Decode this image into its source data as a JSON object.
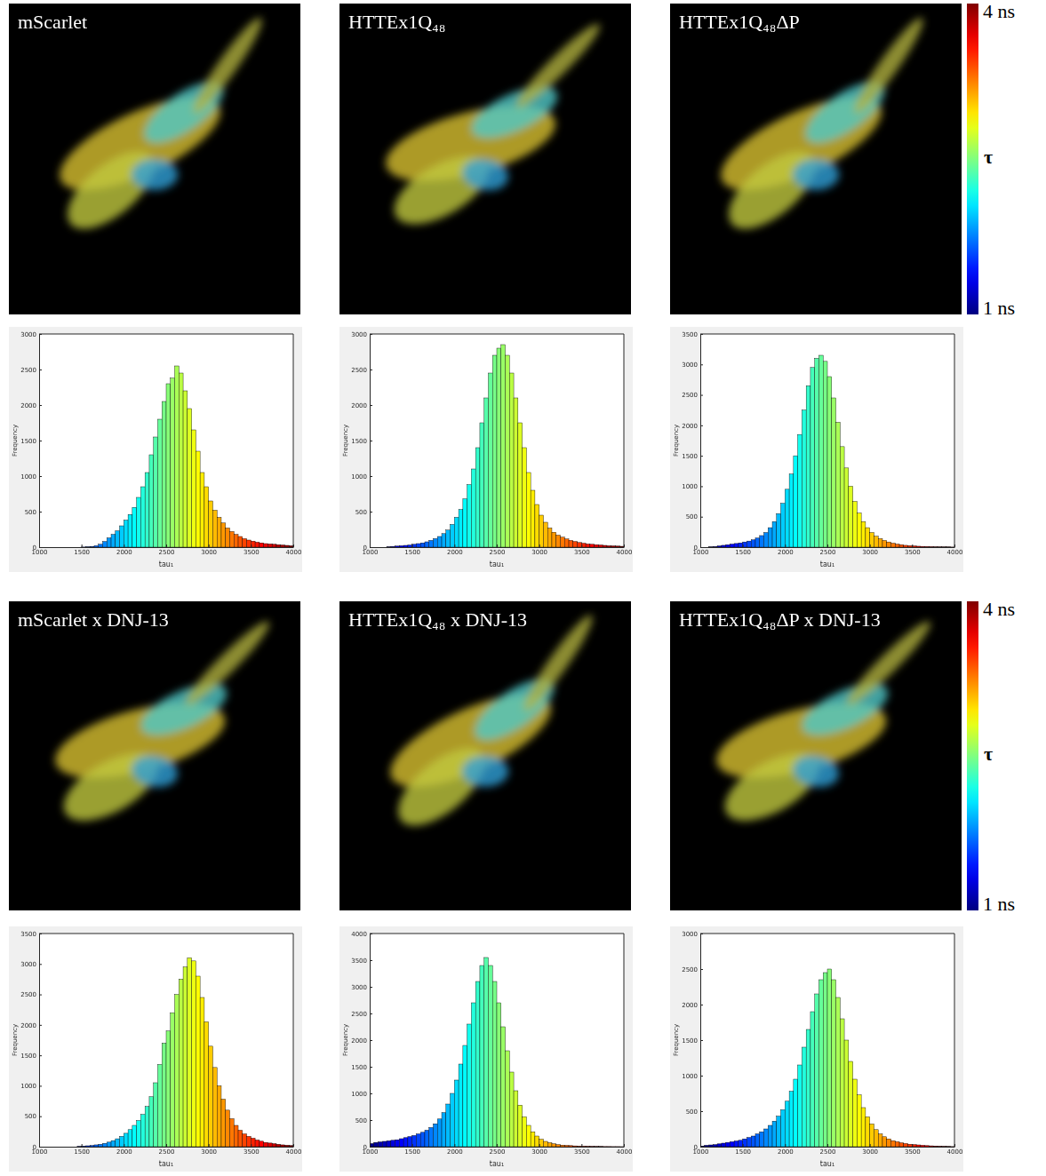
{
  "chart_data": [
    {
      "type": "histogram",
      "title": "mScarlet",
      "xlabel": "tau₁",
      "ylabel": "Frequency",
      "bins": [
        1000,
        1050,
        1100,
        1150,
        1200,
        1250,
        1300,
        1350,
        1400,
        1450,
        1500,
        1550,
        1600,
        1650,
        1700,
        1750,
        1800,
        1850,
        1900,
        1950,
        2000,
        2050,
        2100,
        2150,
        2200,
        2250,
        2300,
        2350,
        2400,
        2450,
        2500,
        2550,
        2600,
        2650,
        2700,
        2750,
        2800,
        2850,
        2900,
        2950,
        3000,
        3050,
        3100,
        3150,
        3200,
        3250,
        3300,
        3350,
        3400,
        3450,
        3500,
        3550,
        3600,
        3650,
        3700,
        3750,
        3800,
        3850,
        3900,
        3950,
        4000
      ],
      "counts": [
        0,
        0,
        0,
        0,
        0,
        0,
        0,
        0,
        0,
        0,
        2,
        5,
        10,
        20,
        40,
        80,
        130,
        180,
        230,
        300,
        380,
        460,
        560,
        700,
        850,
        1050,
        1300,
        1550,
        1800,
        2050,
        2300,
        2380,
        2550,
        2450,
        2200,
        1950,
        1650,
        1350,
        1050,
        850,
        650,
        520,
        420,
        340,
        270,
        220,
        180,
        150,
        120,
        100,
        85,
        70,
        60,
        50,
        45,
        40,
        35,
        30,
        25,
        20
      ],
      "xlim": [
        1000,
        4000
      ],
      "xticks": [
        1000,
        1500,
        2000,
        2500,
        3000,
        3500,
        4000
      ],
      "ylim": [
        0,
        3000
      ],
      "yticks": [
        0,
        500,
        1000,
        1500,
        2000,
        2500,
        3000
      ]
    },
    {
      "type": "histogram",
      "title": "HTTEx1Q₄₈",
      "xlabel": "tau₁",
      "ylabel": "Frequency",
      "bins": [
        1000,
        1050,
        1100,
        1150,
        1200,
        1250,
        1300,
        1350,
        1400,
        1450,
        1500,
        1550,
        1600,
        1650,
        1700,
        1750,
        1800,
        1850,
        1900,
        1950,
        2000,
        2050,
        2100,
        2150,
        2200,
        2250,
        2300,
        2350,
        2400,
        2450,
        2500,
        2550,
        2600,
        2650,
        2700,
        2750,
        2800,
        2850,
        2900,
        2950,
        3000,
        3050,
        3100,
        3150,
        3200,
        3250,
        3300,
        3350,
        3400,
        3450,
        3500,
        3550,
        3600,
        3650,
        3700,
        3750,
        3800,
        3850,
        3900,
        3950,
        4000
      ],
      "counts": [
        0,
        0,
        0,
        0,
        5,
        10,
        15,
        20,
        25,
        30,
        40,
        50,
        60,
        75,
        95,
        120,
        150,
        190,
        240,
        320,
        420,
        530,
        680,
        880,
        1100,
        1400,
        1750,
        2100,
        2450,
        2700,
        2800,
        2850,
        2700,
        2450,
        2100,
        1750,
        1400,
        1050,
        800,
        600,
        450,
        350,
        270,
        210,
        170,
        140,
        115,
        95,
        80,
        65,
        55,
        45,
        40,
        35,
        30,
        25,
        20,
        18,
        15,
        12
      ],
      "xlim": [
        1000,
        4000
      ],
      "xticks": [
        1000,
        1500,
        2000,
        2500,
        3000,
        3500,
        4000
      ],
      "ylim": [
        0,
        3000
      ],
      "yticks": [
        0,
        500,
        1000,
        1500,
        2000,
        2500,
        3000
      ]
    },
    {
      "type": "histogram",
      "title": "HTTEx1Q₄₈ΔP",
      "xlabel": "tau₁",
      "ylabel": "Frequency",
      "bins": [
        1000,
        1050,
        1100,
        1150,
        1200,
        1250,
        1300,
        1350,
        1400,
        1450,
        1500,
        1550,
        1600,
        1650,
        1700,
        1750,
        1800,
        1850,
        1900,
        1950,
        2000,
        2050,
        2100,
        2150,
        2200,
        2250,
        2300,
        2350,
        2400,
        2450,
        2500,
        2550,
        2600,
        2650,
        2700,
        2750,
        2800,
        2850,
        2900,
        2950,
        3000,
        3050,
        3100,
        3150,
        3200,
        3250,
        3300,
        3350,
        3400,
        3450,
        3500,
        3550,
        3600,
        3650,
        3700,
        3750,
        3800,
        3850,
        3900,
        3950,
        4000
      ],
      "counts": [
        0,
        0,
        5,
        10,
        20,
        30,
        40,
        50,
        60,
        70,
        85,
        100,
        120,
        150,
        190,
        240,
        320,
        420,
        550,
        720,
        950,
        1200,
        1500,
        1850,
        2250,
        2650,
        2950,
        3100,
        3150,
        3050,
        2800,
        2450,
        2050,
        1650,
        1300,
        1000,
        750,
        560,
        420,
        320,
        240,
        180,
        140,
        110,
        85,
        65,
        50,
        40,
        30,
        25,
        20,
        15,
        12,
        10,
        8,
        6,
        5,
        4,
        3,
        2
      ],
      "xlim": [
        1000,
        4000
      ],
      "xticks": [
        1000,
        1500,
        2000,
        2500,
        3000,
        3500,
        4000
      ],
      "ylim": [
        0,
        3500
      ],
      "yticks": [
        0,
        500,
        1000,
        1500,
        2000,
        2500,
        3000,
        3500
      ]
    },
    {
      "type": "histogram",
      "title": "mScarlet x DNJ-13",
      "xlabel": "tau₁",
      "ylabel": "Frequency",
      "bins": [
        1000,
        1050,
        1100,
        1150,
        1200,
        1250,
        1300,
        1350,
        1400,
        1450,
        1500,
        1550,
        1600,
        1650,
        1700,
        1750,
        1800,
        1850,
        1900,
        1950,
        2000,
        2050,
        2100,
        2150,
        2200,
        2250,
        2300,
        2350,
        2400,
        2450,
        2500,
        2550,
        2600,
        2650,
        2700,
        2750,
        2800,
        2850,
        2900,
        2950,
        3000,
        3050,
        3100,
        3150,
        3200,
        3250,
        3300,
        3350,
        3400,
        3450,
        3500,
        3550,
        3600,
        3650,
        3700,
        3750,
        3800,
        3850,
        3900,
        3950,
        4000
      ],
      "counts": [
        0,
        0,
        0,
        0,
        0,
        0,
        0,
        0,
        0,
        5,
        10,
        15,
        20,
        30,
        40,
        55,
        75,
        100,
        130,
        170,
        220,
        280,
        350,
        430,
        530,
        660,
        820,
        1050,
        1350,
        1700,
        1900,
        2200,
        2500,
        2750,
        2950,
        3100,
        3050,
        2800,
        2450,
        2050,
        1650,
        1300,
        1000,
        780,
        600,
        460,
        350,
        270,
        210,
        170,
        140,
        110,
        90,
        70,
        60,
        50,
        40,
        30,
        25,
        20
      ],
      "xlim": [
        1000,
        4000
      ],
      "xticks": [
        1000,
        1500,
        2000,
        2500,
        3000,
        3500,
        4000
      ],
      "ylim": [
        0,
        3500
      ],
      "yticks": [
        0,
        500,
        1000,
        1500,
        2000,
        2500,
        3000,
        3500
      ]
    },
    {
      "type": "histogram",
      "title": "HTTEx1Q₄₈ x DNJ-13",
      "xlabel": "tau₁",
      "ylabel": "Frequency",
      "bins": [
        1000,
        1050,
        1100,
        1150,
        1200,
        1250,
        1300,
        1350,
        1400,
        1450,
        1500,
        1550,
        1600,
        1650,
        1700,
        1750,
        1800,
        1850,
        1900,
        1950,
        2000,
        2050,
        2100,
        2150,
        2200,
        2250,
        2300,
        2350,
        2400,
        2450,
        2500,
        2550,
        2600,
        2650,
        2700,
        2750,
        2800,
        2850,
        2900,
        2950,
        3000,
        3050,
        3100,
        3150,
        3200,
        3250,
        3300,
        3350,
        3400,
        3450,
        3500,
        3550,
        3600,
        3650,
        3700,
        3750,
        3800,
        3850,
        3900,
        3950,
        4000
      ],
      "counts": [
        60,
        80,
        90,
        100,
        110,
        120,
        130,
        150,
        170,
        190,
        210,
        240,
        270,
        310,
        360,
        430,
        520,
        640,
        800,
        1000,
        1250,
        1550,
        1900,
        2300,
        2700,
        3100,
        3400,
        3550,
        3400,
        3100,
        2700,
        2250,
        1800,
        1400,
        1050,
        780,
        560,
        400,
        280,
        200,
        140,
        100,
        75,
        55,
        40,
        30,
        25,
        20,
        15,
        12,
        10,
        8,
        6,
        5,
        4,
        3,
        3,
        2,
        2,
        1
      ],
      "xlim": [
        1000,
        4000
      ],
      "xticks": [
        1000,
        1500,
        2000,
        2500,
        3000,
        3500,
        4000
      ],
      "ylim": [
        0,
        4000
      ],
      "yticks": [
        0,
        500,
        1000,
        1500,
        2000,
        2500,
        3000,
        3500,
        4000
      ]
    },
    {
      "type": "histogram",
      "title": "HTTEx1Q₄₈ΔP x DNJ-13",
      "xlabel": "tau₁",
      "ylabel": "Frequency",
      "bins": [
        1000,
        1050,
        1100,
        1150,
        1200,
        1250,
        1300,
        1350,
        1400,
        1450,
        1500,
        1550,
        1600,
        1650,
        1700,
        1750,
        1800,
        1850,
        1900,
        1950,
        2000,
        2050,
        2100,
        2150,
        2200,
        2250,
        2300,
        2350,
        2400,
        2450,
        2500,
        2550,
        2600,
        2650,
        2700,
        2750,
        2800,
        2850,
        2900,
        2950,
        3000,
        3050,
        3100,
        3150,
        3200,
        3250,
        3300,
        3350,
        3400,
        3450,
        3500,
        3550,
        3600,
        3650,
        3700,
        3750,
        3800,
        3850,
        3900,
        3950,
        4000
      ],
      "counts": [
        10,
        20,
        25,
        30,
        40,
        50,
        60,
        70,
        80,
        90,
        110,
        130,
        150,
        180,
        210,
        250,
        300,
        360,
        430,
        520,
        640,
        780,
        950,
        1150,
        1400,
        1650,
        1900,
        2150,
        2350,
        2450,
        2500,
        2350,
        2100,
        1800,
        1500,
        1200,
        950,
        730,
        550,
        420,
        320,
        240,
        180,
        140,
        110,
        85,
        70,
        55,
        45,
        35,
        30,
        25,
        20,
        15,
        12,
        10,
        8,
        6,
        4,
        2
      ],
      "xlim": [
        1000,
        4000
      ],
      "xticks": [
        1000,
        1500,
        2000,
        2500,
        3000,
        3500,
        4000
      ],
      "ylim": [
        0,
        3000
      ],
      "yticks": [
        0,
        500,
        1000,
        1500,
        2000,
        2500,
        3000
      ]
    },
    {
      "type": "colorbar",
      "ylabel": "τ",
      "ylim": [
        1,
        4
      ],
      "yticks": [
        {
          "value": 4,
          "label": "4 ns"
        },
        {
          "value": 1,
          "label": "1 ns"
        }
      ]
    },
    {
      "type": "colorbar",
      "ylabel": "τ",
      "ylim": [
        1,
        4
      ],
      "yticks": [
        {
          "value": 4,
          "label": "4 ns"
        },
        {
          "value": 1,
          "label": "1 ns"
        }
      ]
    }
  ]
}
